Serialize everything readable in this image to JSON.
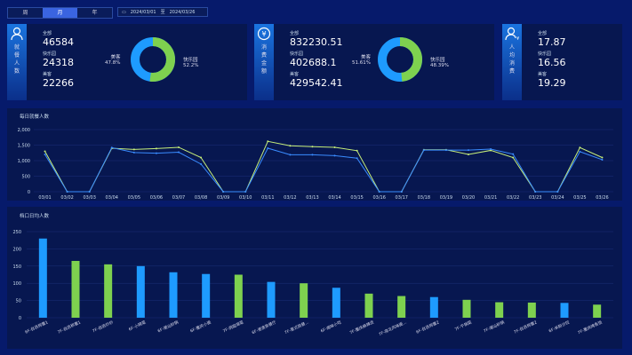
{
  "tabs": [
    {
      "label": "周"
    },
    {
      "label": "月"
    },
    {
      "label": "年"
    }
  ],
  "active_tab": "月",
  "date_range": {
    "start": "2024/03/01",
    "sep": "至",
    "end": "2024/03/26",
    "icon": "calendar-icon"
  },
  "stats": [
    {
      "title": "就餐人数",
      "icon": "user-icon",
      "all_label": "全部",
      "all": "46584",
      "a_label": "快乐园",
      "a": "24318",
      "b_label": "美客",
      "b": "22266",
      "donut": {
        "b_name": "美客",
        "b_pct": "47.8%",
        "a_name": "快乐园",
        "a_pct": "52.2%",
        "a_value": 52.2
      }
    },
    {
      "title": "消费金额",
      "icon": "yen-icon",
      "all_label": "全部",
      "all": "832230.51",
      "a_label": "快乐园",
      "a": "402688.1",
      "b_label": "美客",
      "b": "429542.41",
      "donut": {
        "b_name": "美客",
        "b_pct": "51.61%",
        "a_name": "快乐园",
        "a_pct": "48.39%",
        "a_value": 48.39
      }
    },
    {
      "title": "人均消费",
      "icon": "user-yen-icon",
      "all_label": "全部",
      "all": "17.87",
      "a_label": "快乐园",
      "a": "16.56",
      "b_label": "美客",
      "b": "19.29"
    }
  ],
  "colors": {
    "green": "#7ed14f",
    "blue": "#1e9bff",
    "line_green": "#c8f07a",
    "line_blue": "#3a8cff"
  },
  "chart_data": [
    {
      "type": "line",
      "title": "每日就餐人数",
      "ylim": [
        0,
        2000
      ],
      "yticks": [
        "0",
        "500",
        "1,000",
        "1,500",
        "2,000"
      ],
      "x": [
        "03/01",
        "03/02",
        "03/03",
        "03/04",
        "03/05",
        "03/06",
        "03/07",
        "03/08",
        "03/09",
        "03/10",
        "03/11",
        "03/12",
        "03/13",
        "03/14",
        "03/15",
        "03/16",
        "03/17",
        "03/18",
        "03/19",
        "03/20",
        "03/21",
        "03/22",
        "03/23",
        "03/24",
        "03/25",
        "03/26"
      ],
      "series": [
        {
          "values": [
            1300,
            0,
            0,
            1400,
            1360,
            1390,
            1430,
            1100,
            0,
            0,
            1620,
            1480,
            1450,
            1430,
            1320,
            0,
            0,
            1350,
            1350,
            1200,
            1330,
            1100,
            0,
            0,
            1420,
            1100
          ]
        },
        {
          "values": [
            1200,
            0,
            0,
            1420,
            1260,
            1240,
            1270,
            890,
            0,
            0,
            1400,
            1190,
            1190,
            1160,
            1080,
            0,
            0,
            1340,
            1340,
            1340,
            1370,
            1210,
            0,
            0,
            1290,
            1030
          ]
        }
      ],
      "grid": true
    },
    {
      "type": "bar",
      "title": "档口日均人数",
      "ylim": [
        0,
        250
      ],
      "yticks": [
        "0",
        "50",
        "100",
        "150",
        "200",
        "250"
      ],
      "categories": [
        "6F-自选称重1",
        "7F-自选称重1",
        "7F-自选炒炒",
        "6F-小碗菜",
        "6F-潮汕砂锅",
        "6F-重庆小面",
        "7F-洞庭湖菜",
        "6F-港澳茶餐厅",
        "7F-意式简餐...",
        "6F-湘味小吃",
        "7F-重庆麻辣烫",
        "7F-南北风味面...",
        "6F-自选称重2",
        "7F-干锅菜",
        "7F-潮汕砂锅",
        "7F-自选称重2",
        "6F-米粉沙拉",
        "7F-重庆烤鱼饭"
      ],
      "values": [
        230,
        165,
        155,
        150,
        132,
        127,
        125,
        104,
        100,
        87,
        70,
        63,
        60,
        52,
        45,
        44,
        43,
        38
      ],
      "bar_colors": [
        "blue",
        "green",
        "green",
        "blue",
        "blue",
        "blue",
        "green",
        "blue",
        "green",
        "blue",
        "green",
        "green",
        "blue",
        "green",
        "green",
        "green",
        "blue",
        "green"
      ],
      "grid": true
    }
  ]
}
